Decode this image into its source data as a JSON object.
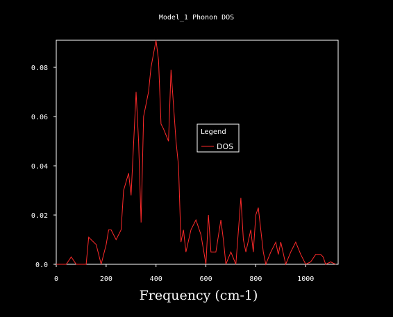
{
  "chart_data": {
    "type": "line",
    "title": "Model_1 Phonon DOS",
    "xlabel": "Frequency (cm-1)",
    "ylabel": "",
    "xlim": [
      0,
      1130
    ],
    "ylim": [
      0,
      0.091
    ],
    "x_ticks": [
      0,
      200,
      400,
      600,
      800,
      1000
    ],
    "x_tick_labels": [
      "0",
      "200",
      "400",
      "600",
      "800",
      "1000"
    ],
    "y_ticks": [
      0.0,
      0.02,
      0.04,
      0.06,
      0.08
    ],
    "y_tick_labels": [
      "0.0",
      "0.02",
      "0.04",
      "0.06",
      "0.08"
    ],
    "legend": {
      "title": "Legend",
      "position": "center-right"
    },
    "colors": {
      "background": "#000000",
      "axes": "#ffffff",
      "series": "#ff2a2a"
    },
    "series": [
      {
        "name": "DOS",
        "x": [
          0,
          40,
          60,
          80,
          120,
          130,
          160,
          180,
          200,
          210,
          220,
          240,
          260,
          270,
          290,
          300,
          320,
          330,
          340,
          350,
          370,
          380,
          400,
          410,
          420,
          430,
          450,
          460,
          480,
          490,
          500,
          510,
          520,
          540,
          560,
          580,
          600,
          610,
          620,
          640,
          660,
          670,
          680,
          700,
          720,
          740,
          750,
          760,
          780,
          790,
          800,
          810,
          820,
          830,
          840,
          860,
          880,
          890,
          900,
          920,
          940,
          960,
          980,
          1000,
          1020,
          1040,
          1060,
          1070,
          1080,
          1100,
          1120
        ],
        "y": [
          0,
          0,
          0.003,
          0,
          0,
          0.011,
          0.008,
          0,
          0.008,
          0.014,
          0.014,
          0.01,
          0.014,
          0.03,
          0.037,
          0.028,
          0.07,
          0.05,
          0.017,
          0.06,
          0.07,
          0.08,
          0.091,
          0.083,
          0.057,
          0.055,
          0.05,
          0.079,
          0.05,
          0.04,
          0.009,
          0.014,
          0.005,
          0.014,
          0.018,
          0.012,
          0,
          0.02,
          0.005,
          0.005,
          0.018,
          0.01,
          0,
          0.005,
          0,
          0.027,
          0.01,
          0.005,
          0.014,
          0.005,
          0.02,
          0.023,
          0.014,
          0.005,
          0,
          0.005,
          0.009,
          0.004,
          0.009,
          0,
          0.005,
          0.009,
          0.004,
          0,
          0.001,
          0.004,
          0.004,
          0.003,
          0,
          0.001,
          0
        ]
      }
    ]
  }
}
